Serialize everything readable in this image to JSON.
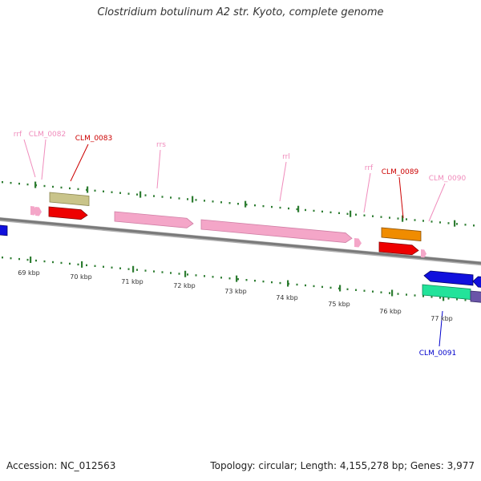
{
  "title": "Clostridium botulinum A2 str. Kyoto, complete genome",
  "footer": {
    "accession": "Accession: NC_012563",
    "summary": "Topology: circular; Length: 4,155,278 bp; Genes: 3,977"
  },
  "colors": {
    "backbone": "#7a7a7a",
    "tick": "#2e7d32",
    "rRNA": "#f4a6c8",
    "rRNA_label": "#f08cbc",
    "gene_red": "#ee0000",
    "gene_olive": "#c9c48a",
    "gene_orange": "#f08c00",
    "gene_blue": "#1010dd",
    "gene_green": "#22e39a",
    "gene_purple": "#6a55a8",
    "label_red": "#cc0000",
    "label_blue": "#0000cc"
  },
  "scale_labels": [
    "69 kbp",
    "70 kbp",
    "71 kbp",
    "72 kbp",
    "73 kbp",
    "74 kbp",
    "75 kbp",
    "76 kbp",
    "77 kbp"
  ],
  "feature_labels": [
    {
      "id": "rrf_1",
      "text": "rrf",
      "color": "rRNA_label"
    },
    {
      "id": "clm0082",
      "text": "CLM_0082",
      "color": "rRNA_label"
    },
    {
      "id": "clm0083",
      "text": "CLM_0083",
      "color": "label_red"
    },
    {
      "id": "rrs",
      "text": "rrs",
      "color": "rRNA_label"
    },
    {
      "id": "rrl",
      "text": "rrl",
      "color": "rRNA_label"
    },
    {
      "id": "rrf_2",
      "text": "rrf",
      "color": "rRNA_label"
    },
    {
      "id": "clm0089",
      "text": "CLM_0089",
      "color": "label_red"
    },
    {
      "id": "clm0090",
      "text": "CLM_0090",
      "color": "rRNA_label"
    },
    {
      "id": "clm0091",
      "text": "CLM_0091",
      "color": "label_blue"
    }
  ]
}
